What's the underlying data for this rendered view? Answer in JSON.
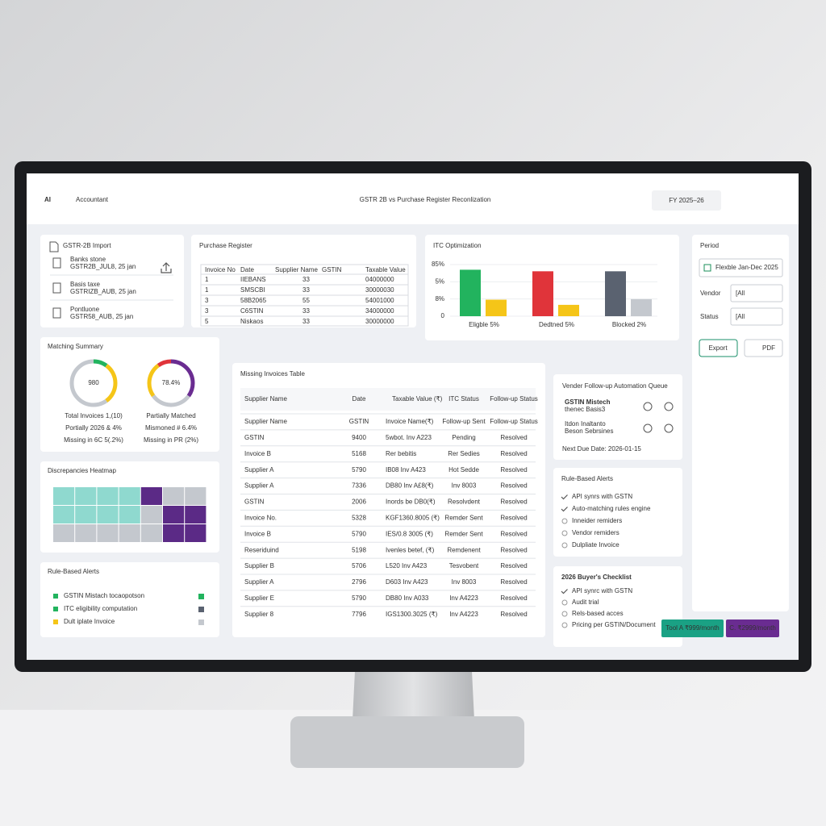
{
  "header": {
    "logo_ai": "AI",
    "logo_text": "Accountant",
    "title": "GSTR 2B vs Purchase Register Reconlization",
    "period": "FY 2025–26"
  },
  "gstr_import": {
    "title": "GSTR-2B Import",
    "files": [
      {
        "label": "Banks stone",
        "name": "GSTR2B_JUL8, 25 jan"
      },
      {
        "label": "Basis taxe",
        "name": "GSTRIZB_AUB, 25 jan"
      },
      {
        "label": "Pontluone",
        "name": "GSTR58_AUB, 25 jan"
      }
    ]
  },
  "purchase_register": {
    "title": "Purchase Register",
    "columns": [
      "Invoice No",
      "Date",
      "Supplier Name",
      "GSTIN",
      "Taxable Value"
    ],
    "rows": [
      [
        "1",
        "IIEBANS",
        "33",
        "04000000"
      ],
      [
        "1",
        "SMSCBI",
        "33",
        "30000030"
      ],
      [
        "3",
        "58B2065",
        "55",
        "54001000"
      ],
      [
        "3",
        "C6STIN",
        "33",
        "34000000"
      ],
      [
        "5",
        "Niskaos",
        "33",
        "30000000"
      ]
    ]
  },
  "itc": {
    "title": "ITC Optimization",
    "axis_labels": [
      "85%",
      "5%",
      "8%",
      "0"
    ],
    "ylim": [
      0,
      100
    ],
    "groups": [
      {
        "label": "Eligble 5%",
        "values": [
          90,
          32
        ],
        "colors": [
          "#22b35e",
          "#f5c518"
        ]
      },
      {
        "label": "Dedtned 5%",
        "values": [
          87,
          22
        ],
        "colors": [
          "#e0343a",
          "#f5c518"
        ]
      },
      {
        "label": "Blocked 2%",
        "values": [
          87,
          33
        ],
        "colors": [
          "#5a6270",
          "#c4c8ce"
        ]
      }
    ]
  },
  "filters": {
    "period_label": "Period",
    "date": "Flexble Jan-Dec 2025",
    "vendor_label": "Vendor",
    "vendor_value": "[All",
    "status_label": "Status",
    "status_value": "[All",
    "export": "Export",
    "pdf": "PDF"
  },
  "matching": {
    "title": "Matching Summary",
    "count": "980",
    "pct": "78.4%",
    "left": [
      "Total Invoices 1,(10)",
      "Portially 2026 & 4%",
      "Missing in 6C 5(.2%)"
    ],
    "right": [
      "Partially Matched",
      "Mismoned # 6.4%",
      "Missing in PR (2%)"
    ]
  },
  "heatmap": {
    "title": "Discrepancies Heatmap"
  },
  "alerts_left": {
    "title": "Rule-Based Alerts",
    "items": [
      "GSTIN Mistach  tocaopotson",
      "ITC eligibility computation",
      "Dult iplate Invoice"
    ]
  },
  "missing": {
    "title": "Missing Invoices Table",
    "columns": [
      "Supplier Name",
      "Date",
      "Taxable Value (₹)",
      "ITC Status",
      "Follow-up Status"
    ],
    "rows": [
      [
        "Supplier Name",
        "GSTIN",
        "Invoice Name(₹)",
        "Follow-up Sent",
        "Follow-up Status"
      ],
      [
        "GSTIN",
        "9400",
        "5wbot. Inv A223",
        "Pending",
        "Resolved"
      ],
      [
        "Invoice B",
        "5168",
        "Rer bebitis",
        "Rer Sedies",
        "Resolved"
      ],
      [
        "Supplier A",
        "5790",
        "IB08 Inv A423",
        "Hot Sedde",
        "Resolved"
      ],
      [
        "Supplier A",
        "7336",
        "DB80 Inv A£8(₹)",
        "Inv 8003",
        "Resolved"
      ],
      [
        "GSTIN",
        "2006",
        "Inords be DB0(₹)",
        "Resolvdent",
        "Resolved"
      ],
      [
        "Invoice No.",
        "5328",
        "KGF1360.8005 (₹)",
        "Remder Sent",
        "Resolved"
      ],
      [
        "Invoice B",
        "5790",
        "IES/0.8 3005 (₹)",
        "Remder Sent",
        "Resolved"
      ],
      [
        "Reseriduind",
        "5198",
        "Ivenles betef, (₹)",
        "Remdenent",
        "Resolved"
      ],
      [
        "Supplier B",
        "5706",
        "L520 Inv A423",
        "Tesvobent",
        "Resolved"
      ],
      [
        "Supplier A",
        "2796",
        "D603 Inv A423",
        "Inv 8003",
        "Resolved"
      ],
      [
        "Supplier E",
        "5790",
        "DB80 Inv A033",
        "Inv A4223",
        "Resolved"
      ],
      [
        "Supplier 8",
        "7796",
        "IGS1300.3025 (₹)",
        "Inv A4223",
        "Resolved"
      ]
    ]
  },
  "vendor_queue": {
    "title": "Vender Follow-up Automation Queue",
    "items": [
      {
        "name": "GSTIN Mistech",
        "sub": "thenec Basis3"
      },
      {
        "name": "Itdon Inaltanto",
        "sub": "Beson Sebrsines"
      }
    ],
    "due": "Next Due Date: 2026-01-15"
  },
  "alerts_mid": {
    "title": "Rule-Based Alerts",
    "items": [
      "API synrs with GSTN",
      "Auto-matching rules engine",
      "Inneider remiders",
      "Vendor remiders",
      "Dulpliate Invoice"
    ]
  },
  "checklist": {
    "title": "2026 Buyer's Checklist",
    "items": [
      "API synrc with GSTN",
      "Audit trial",
      "Rels-based acces",
      "Pricing per GSTIN/Document"
    ]
  },
  "plans": [
    "Tool A ₹999/month",
    "C. ₹2999/month"
  ]
}
